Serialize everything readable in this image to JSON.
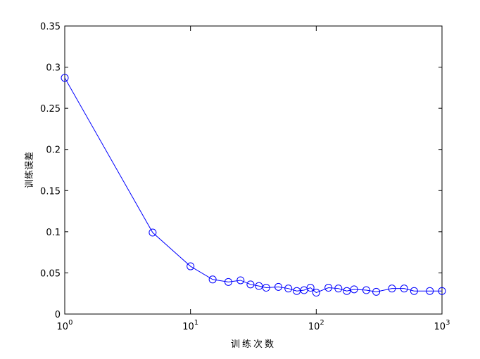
{
  "chart_data": {
    "type": "line",
    "x_label": "训练次数",
    "y_label": "训练误差",
    "x": [
      1,
      5,
      10,
      15,
      20,
      25,
      30,
      35,
      40,
      50,
      60,
      70,
      80,
      90,
      100,
      125,
      150,
      175,
      200,
      250,
      300,
      400,
      500,
      600,
      800,
      1000
    ],
    "series": [
      {
        "color": "#0000ff",
        "marker": "circle",
        "values": [
          0.287,
          0.099,
          0.058,
          0.042,
          0.039,
          0.041,
          0.036,
          0.034,
          0.032,
          0.033,
          0.031,
          0.028,
          0.029,
          0.032,
          0.026,
          0.032,
          0.031,
          0.028,
          0.03,
          0.029,
          0.027,
          0.031,
          0.031,
          0.028,
          0.028,
          0.028
        ]
      }
    ],
    "xscale": "log",
    "xlim": [
      1,
      1000
    ],
    "xticks": [
      {
        "value": 1,
        "label": "10^0"
      },
      {
        "value": 10,
        "label": "10^1"
      },
      {
        "value": 100,
        "label": "10^2"
      },
      {
        "value": 1000,
        "label": "10^3"
      }
    ],
    "ylim": [
      0,
      0.35
    ],
    "yticks": [
      0,
      0.05,
      0.1,
      0.15,
      0.2,
      0.25,
      0.3,
      0.35
    ],
    "grid": false
  }
}
